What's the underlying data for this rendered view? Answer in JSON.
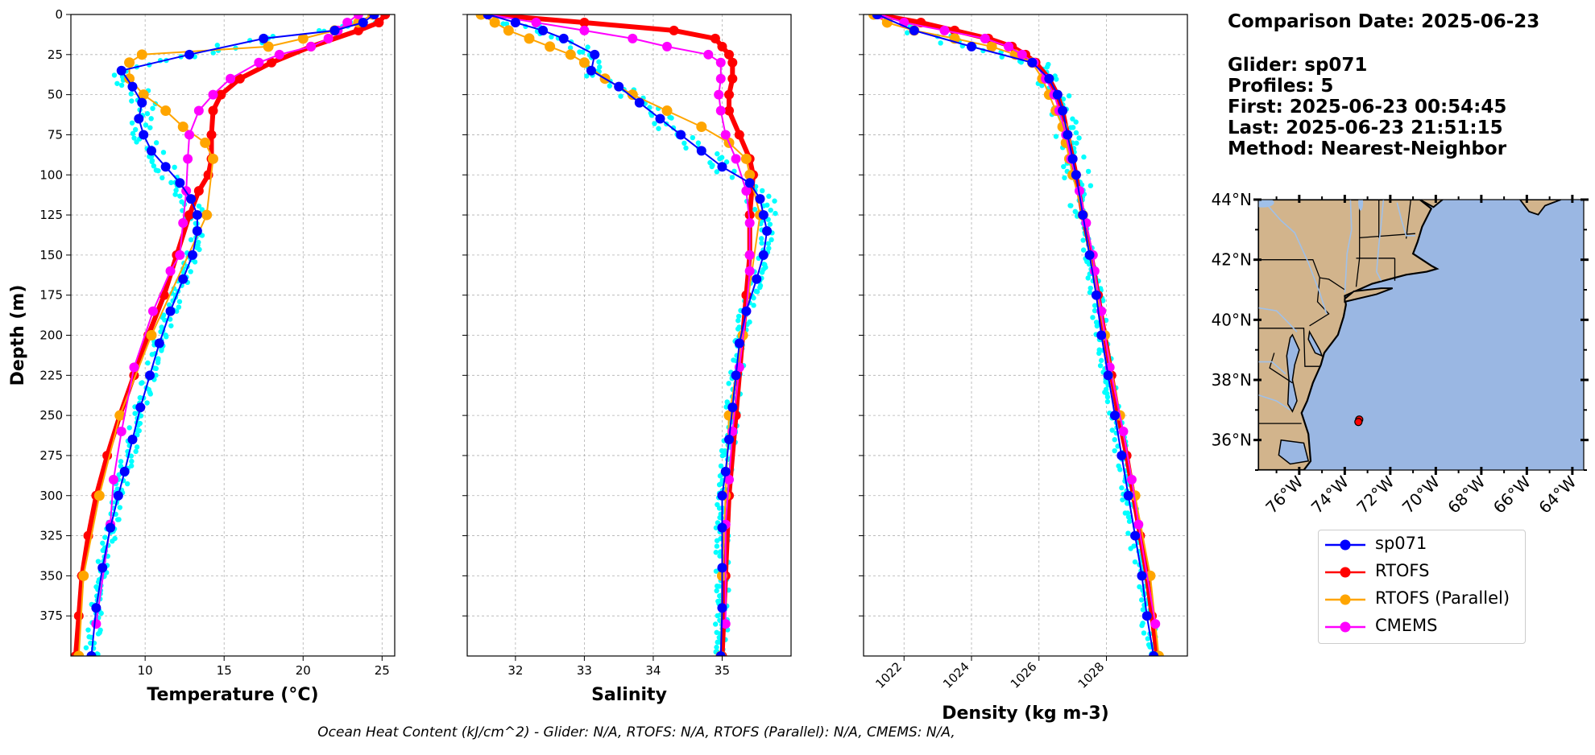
{
  "info": {
    "comparison_date": "Comparison Date: 2025-06-23",
    "glider": "Glider: sp071",
    "profiles": "Profiles: 5",
    "first": "First: 2025-06-23 00:54:45",
    "last": "Last: 2025-06-23 21:51:15",
    "method": "Method: Nearest-Neighbor"
  },
  "footer": "Ocean Heat Content (kJ/cm^2) - Glider: N/A,  RTOFS: N/A,  RTOFS (Parallel): N/A,  CMEMS: N/A,",
  "legend": {
    "entries": [
      {
        "label": "sp071",
        "color": "#0000ff"
      },
      {
        "label": "RTOFS",
        "color": "#ff0000"
      },
      {
        "label": "RTOFS (Parallel)",
        "color": "#ffa500"
      },
      {
        "label": "CMEMS",
        "color": "#ff00ff"
      }
    ]
  },
  "colors": {
    "glider_points": "#00ffff",
    "glider_mean": "#0000ff",
    "rtofs": "#ff0000",
    "rtofs_parallel": "#ffa500",
    "cmems": "#ff00ff",
    "land": "#d2b48c",
    "ocean": "#9ab7e3",
    "rivers": "#a0c0e8",
    "grid": "#b0b0b0"
  },
  "chart_data": [
    {
      "type": "line",
      "xlabel": "Temperature (°C)",
      "ylabel": "Depth (m)",
      "xlim": [
        5.3,
        25.8
      ],
      "ylim": [
        400,
        0
      ],
      "xticks": [
        10,
        15,
        20,
        25
      ],
      "yticks": [
        0,
        25,
        50,
        75,
        100,
        125,
        150,
        175,
        200,
        225,
        250,
        275,
        300,
        325,
        350,
        375
      ],
      "grid": true,
      "series": [
        {
          "name": "sp071",
          "depth": [
            0,
            5,
            10,
            15,
            25,
            35,
            45,
            55,
            65,
            75,
            85,
            95,
            105,
            115,
            125,
            135,
            150,
            165,
            185,
            205,
            225,
            245,
            265,
            285,
            300,
            320,
            345,
            370,
            400
          ],
          "values": [
            24.5,
            23.8,
            22.0,
            17.5,
            12.8,
            8.5,
            9.2,
            9.8,
            9.6,
            9.9,
            10.4,
            11.3,
            12.2,
            12.9,
            13.3,
            13.3,
            13.0,
            12.4,
            11.6,
            10.9,
            10.3,
            9.7,
            9.2,
            8.7,
            8.3,
            7.8,
            7.3,
            6.9,
            6.6
          ]
        },
        {
          "name": "RTOFS",
          "depth": [
            0,
            5,
            10,
            20,
            30,
            40,
            50,
            60,
            75,
            90,
            100,
            110,
            125,
            150,
            175,
            200,
            225,
            250,
            275,
            300,
            325,
            350,
            375,
            400
          ],
          "values": [
            25.2,
            24.8,
            23.5,
            20.5,
            18.0,
            16.0,
            14.8,
            14.3,
            14.2,
            14.2,
            14.0,
            13.4,
            12.8,
            12.0,
            11.2,
            10.2,
            9.3,
            8.4,
            7.6,
            6.9,
            6.4,
            6.0,
            5.8,
            5.6
          ]
        },
        {
          "name": "RTOFS (Parallel)",
          "depth": [
            0,
            5,
            10,
            15,
            20,
            25,
            30,
            40,
            50,
            60,
            70,
            80,
            90,
            125,
            200,
            250,
            300,
            350,
            400
          ],
          "values": [
            24.4,
            23.5,
            22.0,
            20.0,
            17.8,
            9.8,
            9.0,
            9.0,
            9.9,
            11.3,
            12.4,
            13.8,
            14.3,
            13.9,
            10.4,
            8.4,
            7.1,
            6.1,
            5.8
          ]
        },
        {
          "name": "CMEMS",
          "depth": [
            0,
            5,
            10,
            15,
            20,
            25,
            30,
            40,
            50,
            60,
            75,
            90,
            110,
            130,
            150,
            160,
            185,
            220,
            260,
            290,
            318,
            380
          ],
          "values": [
            23.5,
            22.8,
            22.2,
            21.6,
            20.5,
            18.5,
            17.2,
            15.4,
            14.3,
            13.4,
            12.8,
            12.7,
            12.6,
            12.4,
            12.2,
            11.6,
            10.5,
            9.3,
            8.5,
            8.0,
            7.8,
            6.9
          ]
        }
      ],
      "glider_points_range": {
        "depth_start": 5,
        "depth_end": 398,
        "step": 3
      }
    },
    {
      "type": "line",
      "xlabel": "Salinity",
      "xlim": [
        31.3,
        36.0
      ],
      "ylim": [
        400,
        0
      ],
      "xticks": [
        32,
        33,
        34,
        35
      ],
      "grid": true,
      "series": [
        {
          "name": "sp071",
          "depth": [
            0,
            5,
            10,
            15,
            25,
            35,
            45,
            55,
            65,
            75,
            85,
            95,
            105,
            115,
            125,
            135,
            150,
            165,
            185,
            205,
            225,
            245,
            265,
            285,
            300,
            320,
            345,
            370,
            400
          ],
          "values": [
            31.6,
            32.0,
            32.4,
            32.7,
            33.15,
            33.1,
            33.5,
            33.8,
            34.1,
            34.4,
            34.7,
            35.0,
            35.4,
            35.55,
            35.6,
            35.65,
            35.6,
            35.5,
            35.35,
            35.25,
            35.2,
            35.15,
            35.1,
            35.05,
            35.0,
            35.0,
            35.0,
            35.0,
            34.98
          ]
        },
        {
          "name": "RTOFS",
          "depth": [
            0,
            5,
            10,
            15,
            20,
            25,
            30,
            40,
            50,
            60,
            75,
            90,
            100,
            125,
            150,
            175,
            200,
            250,
            300,
            350,
            400
          ],
          "values": [
            31.6,
            33.0,
            34.3,
            34.9,
            35.0,
            35.1,
            35.15,
            35.15,
            35.1,
            35.1,
            35.25,
            35.4,
            35.45,
            35.4,
            35.4,
            35.35,
            35.3,
            35.2,
            35.1,
            35.05,
            35.0
          ]
        },
        {
          "name": "RTOFS (Parallel)",
          "depth": [
            0,
            5,
            10,
            15,
            20,
            25,
            30,
            40,
            50,
            60,
            70,
            80,
            90,
            100,
            125,
            200,
            250,
            300,
            350,
            400
          ],
          "values": [
            31.5,
            31.7,
            31.9,
            32.2,
            32.5,
            32.8,
            33.0,
            33.3,
            33.7,
            34.2,
            34.7,
            35.1,
            35.35,
            35.4,
            35.55,
            35.3,
            35.1,
            35.05,
            35.0,
            34.98
          ]
        },
        {
          "name": "CMEMS",
          "depth": [
            0,
            5,
            10,
            15,
            20,
            25,
            30,
            40,
            50,
            60,
            75,
            90,
            110,
            130,
            150,
            160,
            185,
            220,
            260,
            290,
            318,
            380
          ],
          "values": [
            31.6,
            32.3,
            33.0,
            33.7,
            34.2,
            34.8,
            34.98,
            34.98,
            34.95,
            34.98,
            35.05,
            35.2,
            35.35,
            35.4,
            35.4,
            35.4,
            35.35,
            35.25,
            35.15,
            35.1,
            35.05,
            35.05
          ]
        }
      ],
      "glider_points_range": {
        "depth_start": 5,
        "depth_end": 398,
        "step": 3
      }
    },
    {
      "type": "line",
      "xlabel": "Density (kg m-3)",
      "xlim": [
        1020.8,
        1030.4
      ],
      "ylim": [
        400,
        0
      ],
      "xticks": [
        1022,
        1024,
        1026,
        1028
      ],
      "grid": true,
      "series": [
        {
          "name": "sp071",
          "depth": [
            0,
            10,
            20,
            30,
            40,
            50,
            60,
            75,
            90,
            100,
            125,
            150,
            175,
            200,
            225,
            250,
            275,
            300,
            325,
            350,
            375,
            400
          ],
          "values": [
            1021.2,
            1022.3,
            1024.0,
            1025.8,
            1026.3,
            1026.55,
            1026.7,
            1026.85,
            1027.0,
            1027.1,
            1027.3,
            1027.5,
            1027.7,
            1027.85,
            1028.05,
            1028.25,
            1028.45,
            1028.65,
            1028.85,
            1029.05,
            1029.2,
            1029.4
          ]
        },
        {
          "name": "RTOFS",
          "depth": [
            0,
            5,
            10,
            15,
            20,
            25,
            30,
            40,
            50,
            60,
            75,
            90,
            100,
            125,
            150,
            175,
            200,
            225,
            250,
            275,
            300,
            325,
            350,
            375,
            400
          ],
          "values": [
            1021.2,
            1022.5,
            1023.5,
            1024.5,
            1025.2,
            1025.6,
            1025.9,
            1026.3,
            1026.55,
            1026.7,
            1026.85,
            1027.0,
            1027.1,
            1027.3,
            1027.55,
            1027.75,
            1027.95,
            1028.15,
            1028.35,
            1028.6,
            1028.8,
            1029.0,
            1029.2,
            1029.35,
            1029.5
          ]
        },
        {
          "name": "RTOFS (Parallel)",
          "depth": [
            0,
            5,
            10,
            15,
            20,
            25,
            30,
            40,
            50,
            60,
            70,
            80,
            90,
            100,
            125,
            200,
            250,
            300,
            350,
            400
          ],
          "values": [
            1021.1,
            1021.5,
            1022.3,
            1023.5,
            1024.6,
            1025.3,
            1025.8,
            1026.1,
            1026.3,
            1026.5,
            1026.7,
            1026.8,
            1026.9,
            1027.0,
            1027.3,
            1027.95,
            1028.4,
            1028.85,
            1029.3,
            1029.55
          ]
        },
        {
          "name": "CMEMS",
          "depth": [
            0,
            5,
            10,
            15,
            20,
            25,
            30,
            40,
            50,
            60,
            75,
            90,
            110,
            130,
            150,
            160,
            185,
            220,
            260,
            290,
            318,
            380
          ],
          "values": [
            1021.3,
            1022.0,
            1023.2,
            1024.4,
            1025.1,
            1025.5,
            1025.85,
            1026.2,
            1026.45,
            1026.6,
            1026.8,
            1026.95,
            1027.2,
            1027.4,
            1027.6,
            1027.65,
            1027.85,
            1028.1,
            1028.5,
            1028.75,
            1028.95,
            1029.45
          ]
        }
      ],
      "glider_points_range": {
        "depth_start": 5,
        "depth_end": 398,
        "step": 3
      }
    },
    {
      "type": "map",
      "lat_labels": [
        "44°N",
        "42°N",
        "40°N",
        "38°N",
        "36°N"
      ],
      "lon_labels": [
        "76°W",
        "74°W",
        "72°W",
        "70°W",
        "68°W",
        "66°W",
        "64°W"
      ],
      "lon_range": [
        -77.8,
        -63.5
      ],
      "lat_range": [
        35.0,
        44.0
      ],
      "glider_location": {
        "lon": -73.4,
        "lat": 36.6
      }
    }
  ]
}
